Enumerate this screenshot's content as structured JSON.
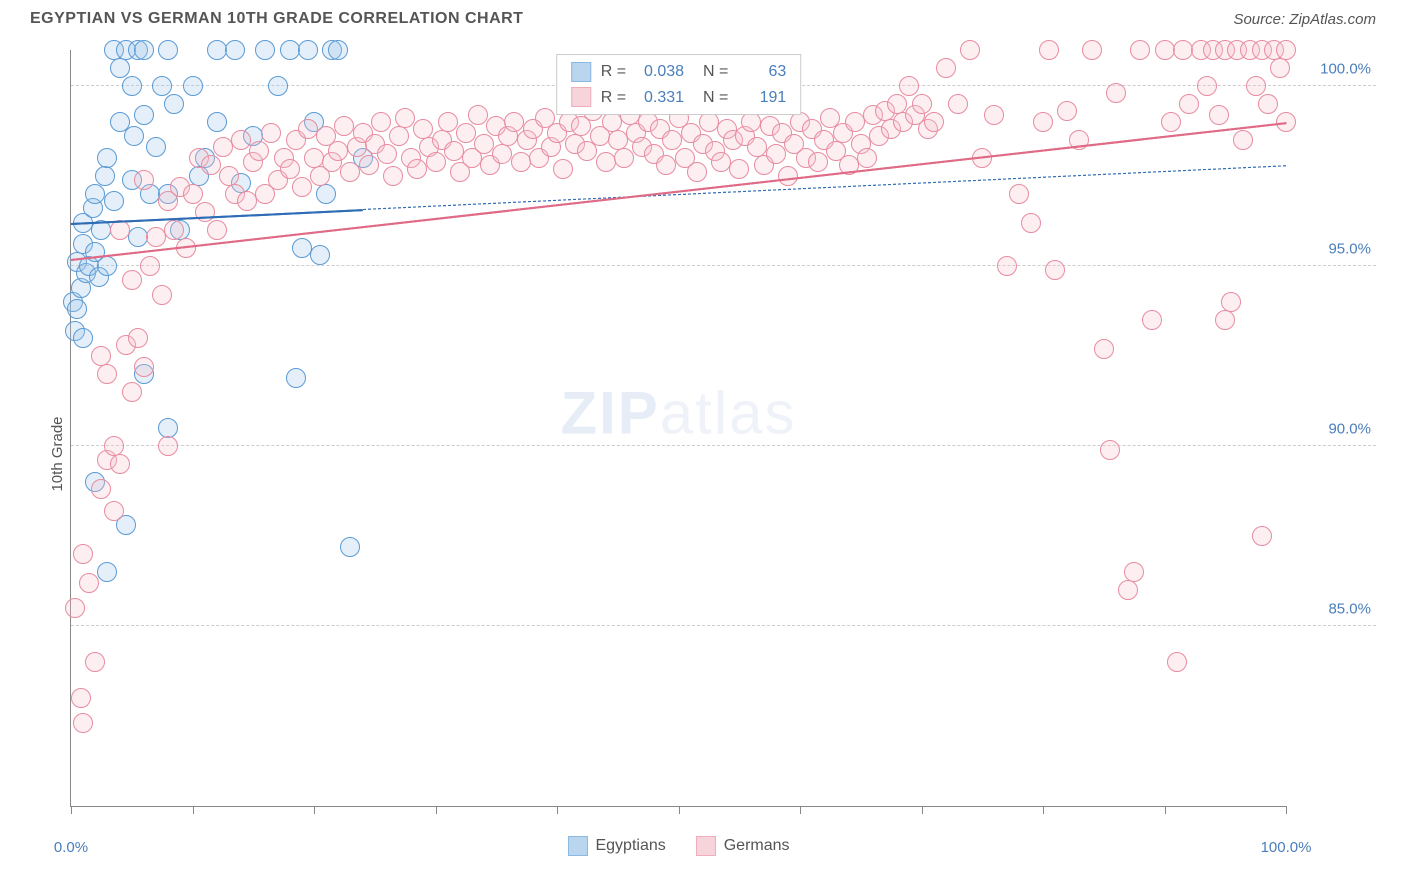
{
  "title": "EGYPTIAN VS GERMAN 10TH GRADE CORRELATION CHART",
  "source": "Source: ZipAtlas.com",
  "ylabel": "10th Grade",
  "watermark": {
    "bold": "ZIP",
    "rest": "atlas"
  },
  "chart": {
    "type": "scatter",
    "xlim": [
      0,
      100
    ],
    "ylim": [
      80,
      101
    ],
    "xticks": [
      0,
      10,
      20,
      30,
      40,
      50,
      60,
      70,
      80,
      90,
      100
    ],
    "xtick_labels": {
      "0": "0.0%",
      "100": "100.0%"
    },
    "yticks": [
      85,
      90,
      95,
      100
    ],
    "ytick_labels": {
      "85": "85.0%",
      "90": "90.0%",
      "95": "95.0%",
      "100": "100.0%"
    },
    "grid_color": "#cccccc",
    "axis_color": "#888888",
    "background_color": "#ffffff",
    "marker_radius": 10,
    "marker_border_width": 1.5,
    "marker_fill_opacity": 0.28,
    "series": [
      {
        "name": "Egyptians",
        "color_fill": "#9ec5e8",
        "color_border": "#5b9bd5",
        "r": "0.038",
        "n": "63",
        "trend": {
          "y0": 96.2,
          "y100": 97.8,
          "solid_until_x": 24,
          "color": "#2e6cb5"
        },
        "points": [
          [
            0.2,
            94.0
          ],
          [
            0.3,
            93.2
          ],
          [
            0.5,
            93.8
          ],
          [
            0.5,
            95.1
          ],
          [
            0.8,
            94.4
          ],
          [
            1.0,
            95.6
          ],
          [
            1.0,
            96.2
          ],
          [
            1.2,
            94.8
          ],
          [
            1.0,
            93.0
          ],
          [
            1.5,
            95.0
          ],
          [
            1.8,
            96.6
          ],
          [
            2.0,
            95.4
          ],
          [
            2.0,
            97.0
          ],
          [
            2.3,
            94.7
          ],
          [
            2.5,
            96.0
          ],
          [
            2.8,
            97.5
          ],
          [
            3.0,
            95.0
          ],
          [
            3.0,
            98.0
          ],
          [
            3.5,
            96.8
          ],
          [
            3.5,
            101.0
          ],
          [
            4.0,
            99.0
          ],
          [
            4.0,
            100.5
          ],
          [
            4.5,
            101.0
          ],
          [
            5.0,
            100.0
          ],
          [
            5.5,
            101.0
          ],
          [
            5.0,
            97.4
          ],
          [
            5.2,
            98.6
          ],
          [
            5.5,
            95.8
          ],
          [
            6.0,
            99.2
          ],
          [
            6.0,
            101.0
          ],
          [
            6.5,
            97.0
          ],
          [
            7.0,
            98.3
          ],
          [
            7.5,
            100.0
          ],
          [
            8.0,
            101.0
          ],
          [
            8.0,
            97.0
          ],
          [
            8.5,
            99.5
          ],
          [
            9.0,
            96.0
          ],
          [
            2.0,
            89.0
          ],
          [
            3.0,
            86.5
          ],
          [
            4.5,
            87.8
          ],
          [
            6.0,
            92.0
          ],
          [
            8.0,
            90.5
          ],
          [
            10.0,
            100.0
          ],
          [
            10.5,
            97.5
          ],
          [
            11.0,
            98.0
          ],
          [
            12.0,
            101.0
          ],
          [
            12.0,
            99.0
          ],
          [
            13.5,
            101.0
          ],
          [
            14.0,
            97.3
          ],
          [
            15.0,
            98.6
          ],
          [
            16.0,
            101.0
          ],
          [
            17.0,
            100.0
          ],
          [
            18.0,
            101.0
          ],
          [
            19.5,
            101.0
          ],
          [
            20.0,
            99.0
          ],
          [
            20.5,
            95.3
          ],
          [
            21.5,
            101.0
          ],
          [
            23.0,
            87.2
          ],
          [
            18.5,
            91.9
          ],
          [
            19.0,
            95.5
          ],
          [
            21.0,
            97.0
          ],
          [
            22.0,
            101.0
          ],
          [
            24.0,
            98.0
          ]
        ]
      },
      {
        "name": "Germans",
        "color_fill": "#f4c2cc",
        "color_border": "#e88ca0",
        "r": "0.331",
        "n": "191",
        "trend": {
          "y0": 95.2,
          "y100": 99.0,
          "solid_until_x": 100,
          "color": "#e06b87"
        },
        "points": [
          [
            0.3,
            85.5
          ],
          [
            0.8,
            83.0
          ],
          [
            1.0,
            82.3
          ],
          [
            1.0,
            87.0
          ],
          [
            1.5,
            86.2
          ],
          [
            2.0,
            84.0
          ],
          [
            2.5,
            88.8
          ],
          [
            3.0,
            89.6
          ],
          [
            3.5,
            90.0
          ],
          [
            4.0,
            89.5
          ],
          [
            3.0,
            92.0
          ],
          [
            4.5,
            92.8
          ],
          [
            5.0,
            91.5
          ],
          [
            5.5,
            93.0
          ],
          [
            6.0,
            92.2
          ],
          [
            5.0,
            94.6
          ],
          [
            6.5,
            95.0
          ],
          [
            7.0,
            95.8
          ],
          [
            7.5,
            94.2
          ],
          [
            8.0,
            96.8
          ],
          [
            8.5,
            96.0
          ],
          [
            9.0,
            97.2
          ],
          [
            9.5,
            95.5
          ],
          [
            10.0,
            97.0
          ],
          [
            10.5,
            98.0
          ],
          [
            11.0,
            96.5
          ],
          [
            11.5,
            97.8
          ],
          [
            12.0,
            96.0
          ],
          [
            12.5,
            98.3
          ],
          [
            13.0,
            97.5
          ],
          [
            13.5,
            97.0
          ],
          [
            14.0,
            98.5
          ],
          [
            14.5,
            96.8
          ],
          [
            15.0,
            97.9
          ],
          [
            15.5,
            98.2
          ],
          [
            16.0,
            97.0
          ],
          [
            16.5,
            98.7
          ],
          [
            17.0,
            97.4
          ],
          [
            17.5,
            98.0
          ],
          [
            18.0,
            97.7
          ],
          [
            18.5,
            98.5
          ],
          [
            19.0,
            97.2
          ],
          [
            19.5,
            98.8
          ],
          [
            20.0,
            98.0
          ],
          [
            20.5,
            97.5
          ],
          [
            21.0,
            98.6
          ],
          [
            21.5,
            97.9
          ],
          [
            22.0,
            98.2
          ],
          [
            22.5,
            98.9
          ],
          [
            23.0,
            97.6
          ],
          [
            23.5,
            98.3
          ],
          [
            24.0,
            98.7
          ],
          [
            24.5,
            97.8
          ],
          [
            25.0,
            98.4
          ],
          [
            25.5,
            99.0
          ],
          [
            26.0,
            98.1
          ],
          [
            26.5,
            97.5
          ],
          [
            27.0,
            98.6
          ],
          [
            27.5,
            99.1
          ],
          [
            28.0,
            98.0
          ],
          [
            28.5,
            97.7
          ],
          [
            29.0,
            98.8
          ],
          [
            29.5,
            98.3
          ],
          [
            30.0,
            97.9
          ],
          [
            30.5,
            98.5
          ],
          [
            31.0,
            99.0
          ],
          [
            31.5,
            98.2
          ],
          [
            32.0,
            97.6
          ],
          [
            32.5,
            98.7
          ],
          [
            33.0,
            98.0
          ],
          [
            33.5,
            99.2
          ],
          [
            34.0,
            98.4
          ],
          [
            34.5,
            97.8
          ],
          [
            35.0,
            98.9
          ],
          [
            35.5,
            98.1
          ],
          [
            36.0,
            98.6
          ],
          [
            36.5,
            99.0
          ],
          [
            37.0,
            97.9
          ],
          [
            37.5,
            98.5
          ],
          [
            38.0,
            98.8
          ],
          [
            38.5,
            98.0
          ],
          [
            39.0,
            99.1
          ],
          [
            39.5,
            98.3
          ],
          [
            40.0,
            98.7
          ],
          [
            40.5,
            97.7
          ],
          [
            41.0,
            99.0
          ],
          [
            41.5,
            98.4
          ],
          [
            42.0,
            98.9
          ],
          [
            42.5,
            98.2
          ],
          [
            43.0,
            99.3
          ],
          [
            43.5,
            98.6
          ],
          [
            44.0,
            97.9
          ],
          [
            44.5,
            99.0
          ],
          [
            45.0,
            98.5
          ],
          [
            45.5,
            98.0
          ],
          [
            46.0,
            99.2
          ],
          [
            46.5,
            98.7
          ],
          [
            47.0,
            98.3
          ],
          [
            47.5,
            99.0
          ],
          [
            48.0,
            98.1
          ],
          [
            48.5,
            98.8
          ],
          [
            49.0,
            97.8
          ],
          [
            49.5,
            98.5
          ],
          [
            50.0,
            99.1
          ],
          [
            50.5,
            98.0
          ],
          [
            51.0,
            98.7
          ],
          [
            51.5,
            97.6
          ],
          [
            52.0,
            98.4
          ],
          [
            52.5,
            99.0
          ],
          [
            53.0,
            98.2
          ],
          [
            53.5,
            97.9
          ],
          [
            54.0,
            98.8
          ],
          [
            54.5,
            98.5
          ],
          [
            55.0,
            97.7
          ],
          [
            55.5,
            98.6
          ],
          [
            56.0,
            99.0
          ],
          [
            56.5,
            98.3
          ],
          [
            57.0,
            97.8
          ],
          [
            57.5,
            98.9
          ],
          [
            58.0,
            98.1
          ],
          [
            58.5,
            98.7
          ],
          [
            59.0,
            97.5
          ],
          [
            59.5,
            98.4
          ],
          [
            60.0,
            99.0
          ],
          [
            60.5,
            98.0
          ],
          [
            61.0,
            98.8
          ],
          [
            61.5,
            97.9
          ],
          [
            62.0,
            98.5
          ],
          [
            62.5,
            99.1
          ],
          [
            63.0,
            98.2
          ],
          [
            63.5,
            98.7
          ],
          [
            64.0,
            97.8
          ],
          [
            64.5,
            99.0
          ],
          [
            65.0,
            98.4
          ],
          [
            65.5,
            98.0
          ],
          [
            66.0,
            99.2
          ],
          [
            66.5,
            98.6
          ],
          [
            67.0,
            99.3
          ],
          [
            67.5,
            98.8
          ],
          [
            68.0,
            99.5
          ],
          [
            68.5,
            99.0
          ],
          [
            69.0,
            100.0
          ],
          [
            69.5,
            99.2
          ],
          [
            70.0,
            99.5
          ],
          [
            70.5,
            98.8
          ],
          [
            71.0,
            99.0
          ],
          [
            72.0,
            100.5
          ],
          [
            73.0,
            99.5
          ],
          [
            74.0,
            101.0
          ],
          [
            75.0,
            98.0
          ],
          [
            76.0,
            99.2
          ],
          [
            77.0,
            95.0
          ],
          [
            78.0,
            97.0
          ],
          [
            79.0,
            96.2
          ],
          [
            80.0,
            99.0
          ],
          [
            80.5,
            101.0
          ],
          [
            81.0,
            94.9
          ],
          [
            82.0,
            99.3
          ],
          [
            83.0,
            98.5
          ],
          [
            84.0,
            101.0
          ],
          [
            85.0,
            92.7
          ],
          [
            85.5,
            89.9
          ],
          [
            86.0,
            99.8
          ],
          [
            87.0,
            86.0
          ],
          [
            87.5,
            86.5
          ],
          [
            88.0,
            101.0
          ],
          [
            89.0,
            93.5
          ],
          [
            90.0,
            101.0
          ],
          [
            90.5,
            99.0
          ],
          [
            91.0,
            84.0
          ],
          [
            91.5,
            101.0
          ],
          [
            92.0,
            99.5
          ],
          [
            93.0,
            101.0
          ],
          [
            93.5,
            100.0
          ],
          [
            94.0,
            101.0
          ],
          [
            94.5,
            99.2
          ],
          [
            95.0,
            101.0
          ],
          [
            95.5,
            94.0
          ],
          [
            96.0,
            101.0
          ],
          [
            96.5,
            98.5
          ],
          [
            97.0,
            101.0
          ],
          [
            97.5,
            100.0
          ],
          [
            98.0,
            101.0
          ],
          [
            98.5,
            99.5
          ],
          [
            99.0,
            101.0
          ],
          [
            99.5,
            100.5
          ],
          [
            100.0,
            101.0
          ],
          [
            98.0,
            87.5
          ],
          [
            95.0,
            93.5
          ],
          [
            100.0,
            99.0
          ],
          [
            8.0,
            90.0
          ],
          [
            2.5,
            92.5
          ],
          [
            4.0,
            96.0
          ],
          [
            6.0,
            97.4
          ],
          [
            3.5,
            88.2
          ]
        ]
      }
    ]
  },
  "legend_bottom": [
    {
      "label": "Egyptians",
      "fill": "#9ec5e8",
      "border": "#5b9bd5"
    },
    {
      "label": "Germans",
      "fill": "#f4c2cc",
      "border": "#e88ca0"
    }
  ]
}
